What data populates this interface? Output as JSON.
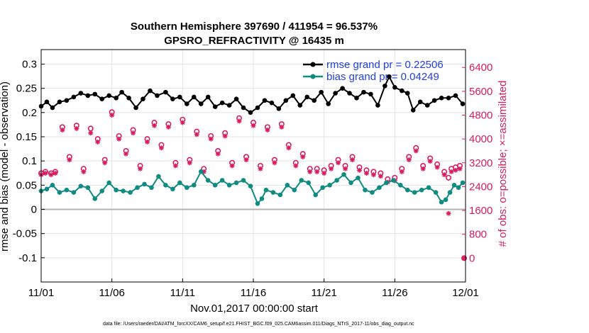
{
  "colors": {
    "rmse": "#000000",
    "bias": "#0f8b82",
    "obs": "#d81b60",
    "legend_text": "#1f3fe0",
    "zero_line": "#b3b3b3"
  },
  "chart_data": {
    "type": "line",
    "title": "Southern Hemisphere 397690 / 411954 = 96.537%",
    "subtitle": "GPSRO_REFRACTIVITY @ 16435 m",
    "xlabel": "Nov.01,2017 00:00:00 start",
    "ylabel_left": "rmse and bias (model - observation)",
    "ylabel_right": "# of obs: o=possible; ×=assimilated",
    "footnote": "data file: /Users/raeder/DAI/ATM_forcXX/CAM6_setup/f.e21.FHIST_BGC.f09_025.CAM6assim.011/Diags_NTrS_2017-11/obs_diag_output.nc",
    "xlim": [
      0,
      30
    ],
    "ylim_left": [
      -0.15,
      0.33
    ],
    "ylim_right": [
      -800,
      7000
    ],
    "x_ticks": [
      0,
      5,
      10,
      15,
      20,
      25,
      30
    ],
    "x_tick_labels": [
      "11/01",
      "11/06",
      "11/11",
      "11/16",
      "11/21",
      "11/26",
      "12/01"
    ],
    "y_ticks_left": [
      -0.1,
      -0.05,
      0,
      0.05,
      0.1,
      0.15,
      0.2,
      0.25,
      0.3
    ],
    "y_tick_labels_left": [
      "-0.1",
      "-0.05",
      "0",
      "0.05",
      "0.1",
      "0.15",
      "0.2",
      "0.25",
      "0.3"
    ],
    "y_ticks_right": [
      0,
      800,
      1600,
      2400,
      3200,
      4000,
      4800,
      5600,
      6400
    ],
    "y_tick_labels_right": [
      "0",
      "800",
      "1600",
      "2400",
      "3200",
      "4000",
      "4800",
      "5600",
      "6400"
    ],
    "legend": {
      "placement": "top-right",
      "entries": [
        "rmse grand pr = 0.22506",
        "bias grand pr = 0.04249"
      ]
    },
    "series": [
      {
        "name": "rmse",
        "axis": "left",
        "anchors": [
          [
            0,
            0.213
          ],
          [
            0.4,
            0.222
          ],
          [
            0.8,
            0.21
          ],
          [
            1.3,
            0.222
          ],
          [
            1.8,
            0.225
          ],
          [
            2.3,
            0.232
          ],
          [
            2.8,
            0.24
          ],
          [
            3.3,
            0.235
          ],
          [
            3.8,
            0.238
          ],
          [
            4.3,
            0.228
          ],
          [
            4.8,
            0.235
          ],
          [
            5.3,
            0.23
          ],
          [
            5.7,
            0.242
          ],
          [
            6.2,
            0.23
          ],
          [
            6.7,
            0.21
          ],
          [
            7.2,
            0.228
          ],
          [
            7.7,
            0.245
          ],
          [
            8.2,
            0.235
          ],
          [
            8.8,
            0.242
          ],
          [
            9.3,
            0.228
          ],
          [
            9.8,
            0.232
          ],
          [
            10.3,
            0.218
          ],
          [
            10.8,
            0.232
          ],
          [
            11.3,
            0.218
          ],
          [
            11.8,
            0.232
          ],
          [
            12.3,
            0.212
          ],
          [
            12.8,
            0.22
          ],
          [
            13.3,
            0.215
          ],
          [
            13.8,
            0.228
          ],
          [
            14.3,
            0.21
          ],
          [
            14.8,
            0.2
          ],
          [
            15.3,
            0.21
          ],
          [
            15.8,
            0.225
          ],
          [
            16.3,
            0.22
          ],
          [
            16.8,
            0.208
          ],
          [
            17.3,
            0.225
          ],
          [
            17.8,
            0.235
          ],
          [
            18.3,
            0.215
          ],
          [
            18.8,
            0.232
          ],
          [
            19.3,
            0.225
          ],
          [
            19.8,
            0.242
          ],
          [
            20.3,
            0.218
          ],
          [
            20.8,
            0.24
          ],
          [
            21.3,
            0.25
          ],
          [
            21.8,
            0.24
          ],
          [
            22.3,
            0.23
          ],
          [
            22.8,
            0.242
          ],
          [
            23.3,
            0.238
          ],
          [
            23.8,
            0.215
          ],
          [
            24.3,
            0.255
          ],
          [
            24.6,
            0.274
          ],
          [
            25.0,
            0.252
          ],
          [
            25.5,
            0.245
          ],
          [
            25.9,
            0.24
          ],
          [
            26.3,
            0.205
          ],
          [
            26.8,
            0.222
          ],
          [
            27.3,
            0.215
          ],
          [
            27.8,
            0.225
          ],
          [
            28.3,
            0.23
          ],
          [
            28.8,
            0.23
          ],
          [
            29.3,
            0.235
          ],
          [
            29.8,
            0.218
          ]
        ]
      },
      {
        "name": "bias",
        "axis": "left",
        "anchors": [
          [
            0,
            0.038
          ],
          [
            0.4,
            0.042
          ],
          [
            0.8,
            0.05
          ],
          [
            1.3,
            0.035
          ],
          [
            1.8,
            0.04
          ],
          [
            2.3,
            0.035
          ],
          [
            2.8,
            0.048
          ],
          [
            3.3,
            0.045
          ],
          [
            3.8,
            0.022
          ],
          [
            4.3,
            0.038
          ],
          [
            4.8,
            0.055
          ],
          [
            5.3,
            0.04
          ],
          [
            5.8,
            0.038
          ],
          [
            6.3,
            0.035
          ],
          [
            6.8,
            0.045
          ],
          [
            7.3,
            0.052
          ],
          [
            7.8,
            0.045
          ],
          [
            8.3,
            0.068
          ],
          [
            8.8,
            0.05
          ],
          [
            9.3,
            0.042
          ],
          [
            9.8,
            0.055
          ],
          [
            10.3,
            0.045
          ],
          [
            10.8,
            0.05
          ],
          [
            11.3,
            0.078
          ],
          [
            11.8,
            0.06
          ],
          [
            12.3,
            0.05
          ],
          [
            12.8,
            0.06
          ],
          [
            13.3,
            0.05
          ],
          [
            13.8,
            0.055
          ],
          [
            14.3,
            0.06
          ],
          [
            14.8,
            0.048
          ],
          [
            15.3,
            0.012
          ],
          [
            15.6,
            0.022
          ],
          [
            15.9,
            0.04
          ],
          [
            16.4,
            0.035
          ],
          [
            16.9,
            0.03
          ],
          [
            17.4,
            0.05
          ],
          [
            17.9,
            0.04
          ],
          [
            18.4,
            0.06
          ],
          [
            18.9,
            0.055
          ],
          [
            19.4,
            0.03
          ],
          [
            19.9,
            0.045
          ],
          [
            20.4,
            0.05
          ],
          [
            20.9,
            0.06
          ],
          [
            21.4,
            0.072
          ],
          [
            21.9,
            0.055
          ],
          [
            22.4,
            0.065
          ],
          [
            22.9,
            0.04
          ],
          [
            23.4,
            0.035
          ],
          [
            23.9,
            0.045
          ],
          [
            24.4,
            0.055
          ],
          [
            24.9,
            0.06
          ],
          [
            25.4,
            0.05
          ],
          [
            25.9,
            0.04
          ],
          [
            26.4,
            0.035
          ],
          [
            26.9,
            0.04
          ],
          [
            27.4,
            0.045
          ],
          [
            27.9,
            0.035
          ],
          [
            28.3,
            0.015
          ],
          [
            28.6,
            0.02
          ],
          [
            28.9,
            0.035
          ],
          [
            29.2,
            0.05
          ],
          [
            29.5,
            0.045
          ],
          [
            29.8,
            0.055
          ]
        ]
      },
      {
        "name": "obs possible",
        "axis": "right",
        "anchors": [
          [
            0,
            2850
          ],
          [
            0.3,
            2900
          ],
          [
            0.7,
            2850
          ],
          [
            1.0,
            2900
          ],
          [
            1.5,
            4400
          ],
          [
            2.0,
            3400
          ],
          [
            2.5,
            4450
          ],
          [
            3.0,
            3000
          ],
          [
            3.5,
            4350
          ],
          [
            4.0,
            4000
          ],
          [
            4.5,
            3300
          ],
          [
            5.0,
            4900
          ],
          [
            5.5,
            4100
          ],
          [
            6.0,
            3600
          ],
          [
            6.5,
            4300
          ],
          [
            7.0,
            3100
          ],
          [
            7.5,
            4000
          ],
          [
            8.0,
            4550
          ],
          [
            8.5,
            3800
          ],
          [
            9.0,
            4500
          ],
          [
            9.5,
            3200
          ],
          [
            10.0,
            4650
          ],
          [
            10.5,
            3300
          ],
          [
            11.0,
            4250
          ],
          [
            11.5,
            3000
          ],
          [
            12.0,
            4100
          ],
          [
            12.5,
            3600
          ],
          [
            13.0,
            4200
          ],
          [
            13.5,
            3200
          ],
          [
            14.0,
            4700
          ],
          [
            14.5,
            3400
          ],
          [
            15.0,
            4550
          ],
          [
            15.5,
            3100
          ],
          [
            16.0,
            4400
          ],
          [
            16.5,
            3300
          ],
          [
            17.0,
            4500
          ],
          [
            17.5,
            3800
          ],
          [
            18.0,
            3200
          ],
          [
            18.5,
            3500
          ],
          [
            19.0,
            3000
          ],
          [
            19.5,
            3000
          ],
          [
            20.0,
            2950
          ],
          [
            20.5,
            3100
          ],
          [
            21.0,
            3300
          ],
          [
            21.5,
            3100
          ],
          [
            22.0,
            3400
          ],
          [
            22.5,
            3050
          ],
          [
            23.0,
            2950
          ],
          [
            23.5,
            2900
          ],
          [
            24.0,
            2850
          ],
          [
            24.5,
            2650
          ],
          [
            25.0,
            2700
          ],
          [
            25.5,
            3000
          ],
          [
            26.0,
            3400
          ],
          [
            26.5,
            3700
          ],
          [
            27.0,
            3100
          ],
          [
            27.5,
            3350
          ],
          [
            28.0,
            3150
          ],
          [
            28.5,
            2900
          ],
          [
            28.8,
            2700
          ],
          [
            29.0,
            3000
          ],
          [
            29.3,
            3050
          ],
          [
            29.6,
            3100
          ],
          [
            29.9,
            0
          ]
        ]
      },
      {
        "name": "obs assimilated",
        "axis": "right",
        "anchors": [
          [
            0,
            2800
          ],
          [
            0.3,
            2850
          ],
          [
            0.7,
            2800
          ],
          [
            1.0,
            2850
          ],
          [
            1.5,
            4300
          ],
          [
            2.0,
            3300
          ],
          [
            2.5,
            4350
          ],
          [
            3.0,
            2900
          ],
          [
            3.5,
            4200
          ],
          [
            4.0,
            3900
          ],
          [
            4.5,
            3200
          ],
          [
            5.0,
            4800
          ],
          [
            5.5,
            4000
          ],
          [
            6.0,
            3500
          ],
          [
            6.5,
            4200
          ],
          [
            7.0,
            3000
          ],
          [
            7.5,
            3900
          ],
          [
            8.0,
            4450
          ],
          [
            8.5,
            3700
          ],
          [
            9.0,
            4400
          ],
          [
            9.5,
            3100
          ],
          [
            10.0,
            4550
          ],
          [
            10.5,
            3200
          ],
          [
            11.0,
            4150
          ],
          [
            11.5,
            2900
          ],
          [
            12.0,
            4000
          ],
          [
            12.5,
            3500
          ],
          [
            13.0,
            4100
          ],
          [
            13.5,
            3100
          ],
          [
            14.0,
            4600
          ],
          [
            14.5,
            3300
          ],
          [
            15.0,
            4450
          ],
          [
            15.5,
            3000
          ],
          [
            16.0,
            4300
          ],
          [
            16.5,
            3200
          ],
          [
            17.0,
            4400
          ],
          [
            17.5,
            3700
          ],
          [
            18.0,
            3100
          ],
          [
            18.5,
            3400
          ],
          [
            19.0,
            2900
          ],
          [
            19.5,
            2900
          ],
          [
            20.0,
            2850
          ],
          [
            20.5,
            3000
          ],
          [
            21.0,
            3200
          ],
          [
            21.5,
            3000
          ],
          [
            22.0,
            3300
          ],
          [
            22.5,
            2950
          ],
          [
            23.0,
            2850
          ],
          [
            23.5,
            2800
          ],
          [
            24.0,
            2750
          ],
          [
            24.5,
            2550
          ],
          [
            25.0,
            2600
          ],
          [
            25.5,
            2900
          ],
          [
            26.0,
            3300
          ],
          [
            26.5,
            3600
          ],
          [
            27.0,
            3000
          ],
          [
            27.5,
            3250
          ],
          [
            28.0,
            3050
          ],
          [
            28.5,
            2800
          ],
          [
            28.8,
            1500
          ],
          [
            29.0,
            2900
          ],
          [
            29.3,
            2950
          ],
          [
            29.6,
            3000
          ],
          [
            29.9,
            0
          ]
        ]
      }
    ]
  }
}
